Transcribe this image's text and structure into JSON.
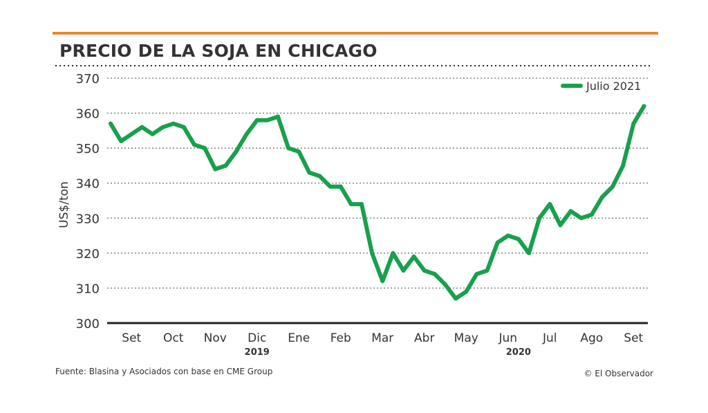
{
  "colors": {
    "accent": "#E8892F",
    "series": "#18A04D",
    "text": "#333333",
    "grid": "#8a8a8a",
    "axis": "#222222"
  },
  "footer": {
    "source": "Fuente: Blasina y Asociados con base en CME Group",
    "credit": "© El Observador"
  },
  "chart_data": {
    "type": "line",
    "title": "PRECIO DE LA SOJA EN CHICAGO",
    "ylabel": "US$/ton",
    "xlabel": "",
    "ylim": [
      300,
      370
    ],
    "yticks": [
      300,
      310,
      320,
      330,
      340,
      350,
      360,
      370
    ],
    "grid": true,
    "legend_position": "top-right",
    "month_labels": [
      "Set",
      "Oct",
      "Nov",
      "Dic",
      "Ene",
      "Feb",
      "Mar",
      "Abr",
      "May",
      "Jun",
      "Jul",
      "Ago",
      "Set"
    ],
    "year_labels": [
      {
        "label": "2019",
        "month_index": 3
      },
      {
        "label": "2020",
        "month_index": 9.25
      }
    ],
    "series": [
      {
        "name": "Julio 2021",
        "x_unit": "months since start of Sep 2019",
        "x": [
          0,
          0.25,
          0.5,
          0.75,
          1,
          1.25,
          1.5,
          1.75,
          2,
          2.25,
          2.5,
          2.75,
          3,
          3.25,
          3.5,
          3.75,
          4,
          4.25,
          4.5,
          4.75,
          5,
          5.25,
          5.5,
          5.75,
          6,
          6.25,
          6.5,
          6.75,
          7,
          7.25,
          7.5,
          7.75,
          8,
          8.25,
          8.5,
          8.75,
          9,
          9.25,
          9.5,
          9.75,
          10,
          10.25,
          10.5,
          10.75,
          11,
          11.25,
          11.5,
          11.75,
          12,
          12.25,
          12.5,
          12.75
        ],
        "values": [
          357,
          352,
          354,
          356,
          354,
          356,
          357,
          356,
          351,
          350,
          344,
          345,
          349,
          354,
          358,
          358,
          359,
          350,
          349,
          343,
          342,
          339,
          339,
          334,
          334,
          320,
          312,
          320,
          315,
          319,
          315,
          314,
          311,
          307,
          309,
          314,
          315,
          323,
          325,
          324,
          320,
          330,
          334,
          328,
          332,
          330,
          331,
          336,
          339,
          345,
          357,
          362
        ]
      }
    ]
  }
}
